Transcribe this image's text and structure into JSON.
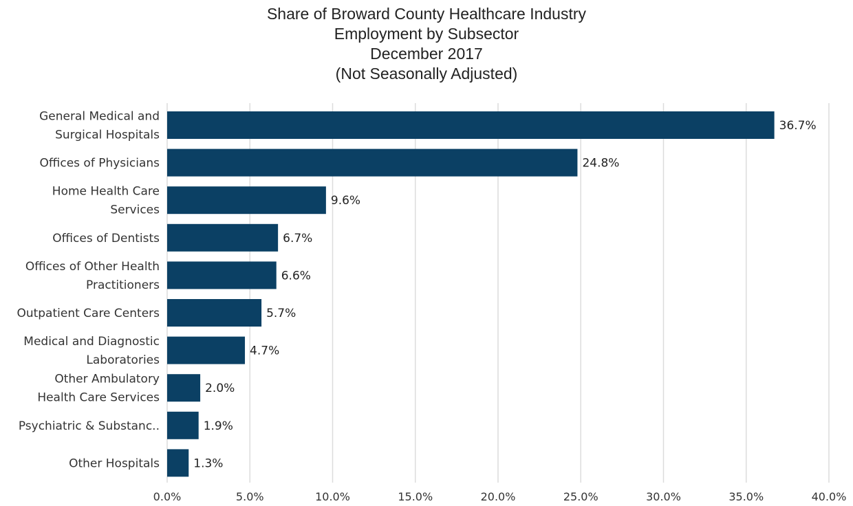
{
  "chart_data": {
    "type": "bar",
    "orientation": "horizontal",
    "title_lines": [
      "Share of Broward County Healthcare Industry",
      "Employment by Subsector",
      "December 2017",
      "(Not Seasonally Adjusted)"
    ],
    "categories": [
      [
        "General Medical and",
        "Surgical Hospitals"
      ],
      [
        "Offices of Physicians"
      ],
      [
        "Home Health Care",
        "Services"
      ],
      [
        "Offices of Dentists"
      ],
      [
        "Offices of Other Health",
        "Practitioners"
      ],
      [
        "Outpatient Care Centers"
      ],
      [
        "Medical and Diagnostic",
        "Laboratories"
      ],
      [
        "Other Ambulatory",
        "Health Care Services"
      ],
      [
        "Psychiatric & Substanc.."
      ],
      [
        "Other Hospitals"
      ]
    ],
    "values": [
      36.7,
      24.8,
      9.6,
      6.7,
      6.6,
      5.7,
      4.7,
      2.0,
      1.9,
      1.3
    ],
    "value_labels": [
      "36.7%",
      "24.8%",
      "9.6%",
      "6.7%",
      "6.6%",
      "5.7%",
      "4.7%",
      "2.0%",
      "1.9%",
      "1.3%"
    ],
    "xlim": [
      0,
      40
    ],
    "xticks": [
      0,
      5,
      10,
      15,
      20,
      25,
      30,
      35,
      40
    ],
    "xtick_labels": [
      "0.0%",
      "5.0%",
      "10.0%",
      "15.0%",
      "20.0%",
      "25.0%",
      "30.0%",
      "35.0%",
      "40.0%"
    ],
    "bar_color": "#0b4064",
    "grid_color": "#dcdcdc",
    "grid": true
  }
}
